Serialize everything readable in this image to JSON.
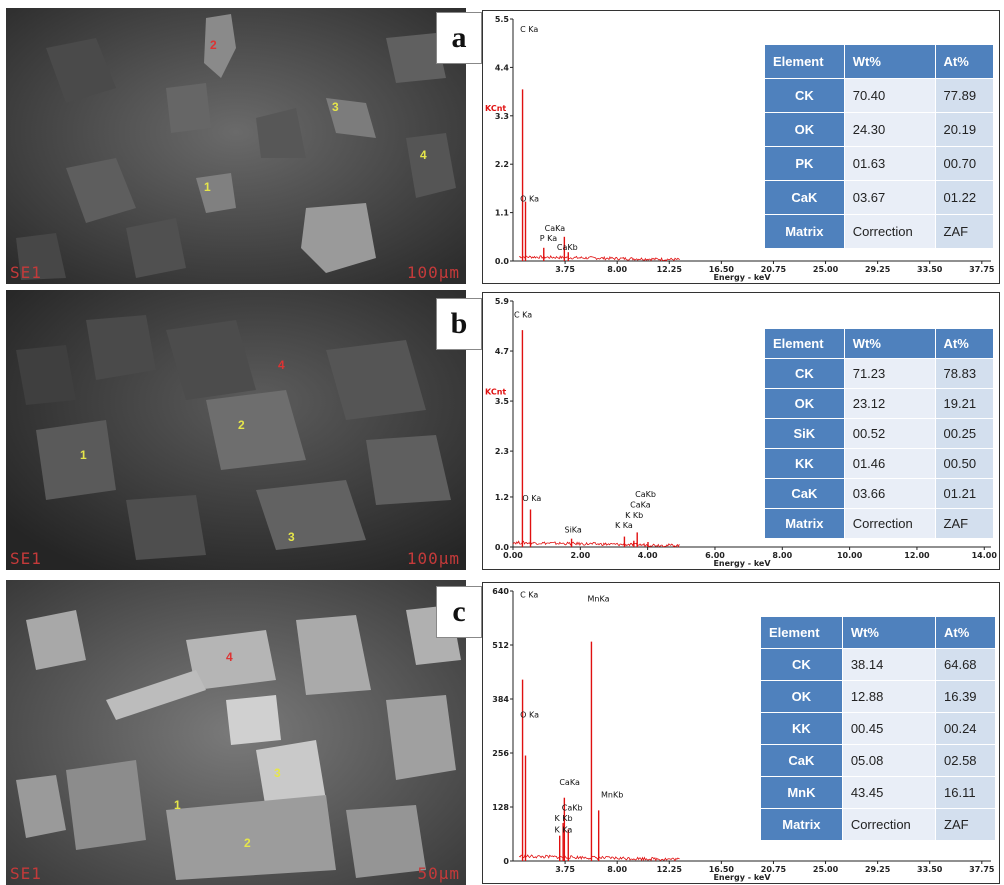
{
  "colors": {
    "spectrum": "#e01010",
    "table_header": "#4f81bd",
    "table_cell_light": "#e9eef7",
    "table_cell_dark": "#d3dfee",
    "sem_label": "#c43a3a"
  },
  "chart_data": [
    {
      "type": "line",
      "panel_label": "a",
      "ylabel": "KCnt",
      "xlabel": "Energy - keV",
      "x_ticks": [
        "3.75",
        "8.00",
        "12.25",
        "16.50",
        "20.75",
        "25.00",
        "29.25",
        "33.50",
        "37.75"
      ],
      "x_tick_values": [
        3.75,
        8.0,
        12.25,
        16.5,
        20.75,
        25.0,
        29.25,
        33.5,
        37.75
      ],
      "xlim": [
        -0.5,
        38.5
      ],
      "y_ticks": [
        "0.0",
        "1.1",
        "2.2",
        "3.3",
        "4.4",
        "5.5"
      ],
      "ylim": [
        0,
        5.5
      ],
      "peaks": [
        {
          "label": "C Ka",
          "x": 0.28,
          "y": 3.9
        },
        {
          "label": "O Ka",
          "x": 0.52,
          "y": 1.35
        },
        {
          "label": "P Ka",
          "x": 2.01,
          "y": 0.3
        },
        {
          "label": "CaKa",
          "x": 3.69,
          "y": 0.55
        },
        {
          "label": "CaKb",
          "x": 4.01,
          "y": 0.2
        }
      ],
      "peak_label_anchor": [
        {
          "label": "C Ka",
          "x": 0.0,
          "y": 5.2
        },
        {
          "label": "O Ka",
          "x": 0.0,
          "y": 1.35
        },
        {
          "label": "P Ka",
          "x": 1.6,
          "y": 0.45
        },
        {
          "label": "CaKa",
          "x": 2.0,
          "y": 0.68
        },
        {
          "label": "CaKb",
          "x": 3.0,
          "y": 0.25
        }
      ],
      "table": {
        "headers": [
          "Element",
          "Wt%",
          "At%"
        ],
        "rows": [
          [
            "CK",
            "70.40",
            "77.89"
          ],
          [
            "OK",
            "24.30",
            "20.19"
          ],
          [
            "PK",
            "01.63",
            "00.70"
          ],
          [
            "CaK",
            "03.67",
            "01.22"
          ],
          [
            "Matrix",
            "Correction",
            "ZAF"
          ]
        ]
      }
    },
    {
      "type": "line",
      "panel_label": "b",
      "ylabel": "KCnt",
      "xlabel": "Energy - keV",
      "x_ticks": [
        "0.00",
        "2.00",
        "4.00",
        "6.00",
        "8.00",
        "10.00",
        "12.00",
        "14.00"
      ],
      "x_tick_values": [
        0,
        2,
        4,
        6,
        8,
        10,
        12,
        14
      ],
      "xlim": [
        0,
        14.2
      ],
      "y_ticks": [
        "0.0",
        "1.2",
        "2.3",
        "3.5",
        "4.7",
        "5.9"
      ],
      "ylim": [
        0,
        5.9
      ],
      "peaks": [
        {
          "label": "C Ka",
          "x": 0.28,
          "y": 5.2
        },
        {
          "label": "O Ka",
          "x": 0.52,
          "y": 0.9
        },
        {
          "label": "SiKa",
          "x": 1.74,
          "y": 0.2
        },
        {
          "label": "K Ka",
          "x": 3.31,
          "y": 0.25
        },
        {
          "label": "K Kb",
          "x": 3.59,
          "y": 0.15
        },
        {
          "label": "CaKa",
          "x": 3.69,
          "y": 0.35
        },
        {
          "label": "CaKb",
          "x": 4.01,
          "y": 0.12
        }
      ],
      "peak_label_anchor": [
        {
          "label": "C Ka",
          "x": 0.0,
          "y": 5.5
        },
        {
          "label": "O Ka",
          "x": 0.25,
          "y": 1.1
        },
        {
          "label": "SiKa",
          "x": 1.5,
          "y": 0.35
        },
        {
          "label": "K Ka",
          "x": 3.0,
          "y": 0.45
        },
        {
          "label": "K Kb",
          "x": 3.3,
          "y": 0.7
        },
        {
          "label": "CaKa",
          "x": 3.45,
          "y": 0.95
        },
        {
          "label": "CaKb",
          "x": 3.6,
          "y": 1.2
        }
      ],
      "table": {
        "headers": [
          "Element",
          "Wt%",
          "At%"
        ],
        "rows": [
          [
            "CK",
            "71.23",
            "78.83"
          ],
          [
            "OK",
            "23.12",
            "19.21"
          ],
          [
            "SiK",
            "00.52",
            "00.25"
          ],
          [
            "KK",
            "01.46",
            "00.50"
          ],
          [
            "CaK",
            "03.66",
            "01.21"
          ],
          [
            "Matrix",
            "Correction",
            "ZAF"
          ]
        ]
      }
    },
    {
      "type": "line",
      "panel_label": "c",
      "ylabel": "",
      "xlabel": "Energy - keV",
      "x_ticks": [
        "3.75",
        "8.00",
        "12.25",
        "16.50",
        "20.75",
        "25.00",
        "29.25",
        "33.50",
        "37.75"
      ],
      "x_tick_values": [
        3.75,
        8.0,
        12.25,
        16.5,
        20.75,
        25.0,
        29.25,
        33.5,
        37.75
      ],
      "xlim": [
        -0.5,
        38.5
      ],
      "y_ticks": [
        "0",
        "128",
        "256",
        "384",
        "512",
        "640"
      ],
      "ylim": [
        0,
        640
      ],
      "peaks": [
        {
          "label": "C Ka",
          "x": 0.28,
          "y": 430
        },
        {
          "label": "O Ka",
          "x": 0.52,
          "y": 250
        },
        {
          "label": "CaKa",
          "x": 3.69,
          "y": 150
        },
        {
          "label": "CaKb",
          "x": 4.01,
          "y": 75
        },
        {
          "label": "K Kb",
          "x": 3.59,
          "y": 90
        },
        {
          "label": "K Ka",
          "x": 3.31,
          "y": 60
        },
        {
          "label": "MnKa",
          "x": 5.9,
          "y": 520
        },
        {
          "label": "MnKb",
          "x": 6.49,
          "y": 120
        }
      ],
      "peak_label_anchor": [
        {
          "label": "C Ka",
          "x": 0.0,
          "y": 625
        },
        {
          "label": "O Ka",
          "x": 0.0,
          "y": 340
        },
        {
          "label": "CaKa",
          "x": 3.2,
          "y": 180
        },
        {
          "label": "CaKb",
          "x": 3.4,
          "y": 120
        },
        {
          "label": "K Kb",
          "x": 2.8,
          "y": 95
        },
        {
          "label": "K Ka",
          "x": 2.8,
          "y": 68
        },
        {
          "label": "MnKa",
          "x": 5.5,
          "y": 615
        },
        {
          "label": "MnKb",
          "x": 6.6,
          "y": 150
        }
      ],
      "table": {
        "headers": [
          "Element",
          "Wt%",
          "At%"
        ],
        "rows": [
          [
            "CK",
            "38.14",
            "64.68"
          ],
          [
            "OK",
            "12.88",
            "16.39"
          ],
          [
            "KK",
            "00.45",
            "00.24"
          ],
          [
            "CaK",
            "05.08",
            "02.58"
          ],
          [
            "MnK",
            "43.45",
            "16.11"
          ],
          [
            "Matrix",
            "Correction",
            "ZAF"
          ]
        ]
      }
    }
  ],
  "sem": [
    {
      "detector": "SE1",
      "scale": "100μm",
      "markers": [
        "1",
        "2",
        "3",
        "4"
      ]
    },
    {
      "detector": "SE1",
      "scale": "100μm",
      "markers": [
        "1",
        "2",
        "3",
        "4"
      ]
    },
    {
      "detector": "SE1",
      "scale": "50μm",
      "markers": [
        "1",
        "2",
        "3",
        "4"
      ]
    }
  ]
}
